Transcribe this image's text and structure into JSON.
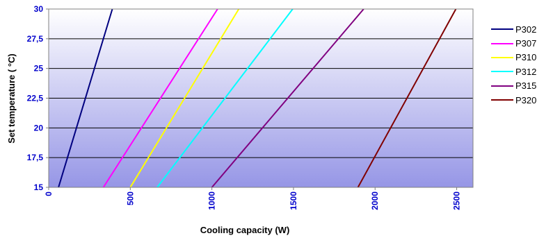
{
  "chart_data": {
    "type": "line",
    "xlabel": "Cooling capacity (W)",
    "ylabel": "Set temperature ( °C)",
    "xlim": [
      0,
      2600
    ],
    "ylim": [
      15,
      30
    ],
    "xticks": [
      0,
      500,
      1000,
      1500,
      2000,
      2500
    ],
    "yticks": [
      "15",
      "17,5",
      "20",
      "22,5",
      "25",
      "27,5",
      "30"
    ],
    "ytick_values": [
      15,
      17.5,
      20,
      22.5,
      25,
      27.5,
      30
    ],
    "grid": "horizontal",
    "legend_position": "right",
    "background": "gradient white (top) to periwinkle blue (bottom)",
    "series": [
      {
        "name": "P302",
        "color": "#000080",
        "x": [
          60,
          390
        ],
        "y": [
          15,
          30
        ]
      },
      {
        "name": "P307",
        "color": "#FF00FF",
        "x": [
          335,
          1035
        ],
        "y": [
          15,
          30
        ]
      },
      {
        "name": "P310",
        "color": "#FFFF00",
        "x": [
          500,
          1165
        ],
        "y": [
          15,
          30
        ]
      },
      {
        "name": "P312",
        "color": "#00FFFF",
        "x": [
          665,
          1495
        ],
        "y": [
          15,
          30
        ]
      },
      {
        "name": "P315",
        "color": "#800080",
        "x": [
          1000,
          1930
        ],
        "y": [
          15,
          30
        ]
      },
      {
        "name": "P320",
        "color": "#800000",
        "x": [
          1895,
          2495
        ],
        "y": [
          15,
          30
        ]
      }
    ]
  }
}
